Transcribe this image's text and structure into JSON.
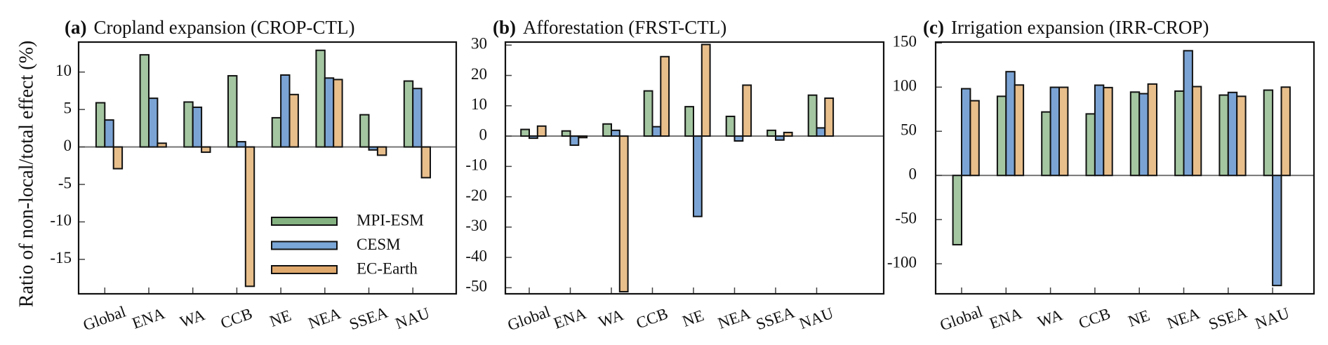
{
  "figure": {
    "ylabel": "Ratio of non-local/total effect (%)",
    "series_colors": {
      "MPI-ESM": "#a4c6a1",
      "CESM": "#7ba4d5",
      "EC-Earth": "#e8be8b"
    },
    "legend_swatch_colors": {
      "MPI-ESM": "#84b381",
      "CESM": "#7aa6d8",
      "EC-Earth": "#dfa86c"
    }
  },
  "chart_data": [
    {
      "type": "bar",
      "panel_label": "(a)",
      "title": "Cropland expansion (CROP-CTL)",
      "xlabel": "",
      "ylabel": "Ratio of non-local/total effect (%)",
      "categories": [
        "Global",
        "ENA",
        "WA",
        "CCB",
        "NE",
        "NEA",
        "SSEA",
        "NAU"
      ],
      "ylim": [
        -19.6,
        14
      ],
      "yticks": [
        10,
        5,
        0,
        -5,
        -10,
        -15
      ],
      "ytick_labels": [
        "10",
        "5",
        "0",
        "-5",
        "-10",
        "-15"
      ],
      "legend": {
        "placement": "lower-center",
        "entries": [
          "MPI-ESM",
          "CESM",
          "EC-Earth"
        ]
      },
      "series": [
        {
          "name": "MPI-ESM",
          "values": [
            5.9,
            12.3,
            6.0,
            9.5,
            3.9,
            12.9,
            4.3,
            8.8
          ]
        },
        {
          "name": "CESM",
          "values": [
            3.6,
            6.5,
            5.3,
            0.7,
            9.6,
            9.2,
            -0.4,
            7.8
          ]
        },
        {
          "name": "EC-Earth",
          "values": [
            -2.9,
            0.5,
            -0.7,
            -18.6,
            7.0,
            9.0,
            -1.1,
            -4.1
          ]
        }
      ]
    },
    {
      "type": "bar",
      "panel_label": "(b)",
      "title": "Afforestation (FRST-CTL)",
      "xlabel": "",
      "ylabel": "",
      "categories": [
        "Global",
        "ENA",
        "WA",
        "CCB",
        "NE",
        "NEA",
        "SSEA",
        "NAU"
      ],
      "ylim": [
        -52,
        31
      ],
      "yticks": [
        30,
        20,
        10,
        0,
        -10,
        -20,
        -30,
        -40,
        -50
      ],
      "ytick_labels": [
        "30",
        "20",
        "10",
        "0",
        "-10",
        "-20",
        "-30",
        "-40",
        "-50"
      ],
      "series": [
        {
          "name": "MPI-ESM",
          "values": [
            2.2,
            1.7,
            4.0,
            14.9,
            9.7,
            6.5,
            1.9,
            13.5
          ]
        },
        {
          "name": "CESM",
          "values": [
            -0.7,
            -3.0,
            1.9,
            3.1,
            -26.5,
            -1.6,
            -1.3,
            2.7
          ]
        },
        {
          "name": "EC-Earth",
          "values": [
            3.3,
            -0.5,
            -51.3,
            26.2,
            30.2,
            16.8,
            1.2,
            12.5
          ]
        }
      ]
    },
    {
      "type": "bar",
      "panel_label": "(c)",
      "title": "Irrigation expansion (IRR-CROP)",
      "xlabel": "",
      "ylabel": "",
      "categories": [
        "Global",
        "ENA",
        "WA",
        "CCB",
        "NE",
        "NEA",
        "SSEA",
        "NAU"
      ],
      "ylim": [
        -134,
        151
      ],
      "yticks": [
        150,
        100,
        50,
        0,
        -50,
        -100
      ],
      "ytick_labels": [
        "150",
        "100",
        "50",
        "0",
        "-50",
        "-100"
      ],
      "series": [
        {
          "name": "MPI-ESM",
          "values": [
            -78.4,
            89.6,
            71.9,
            69.7,
            94.4,
            95.5,
            91.0,
            96.6
          ]
        },
        {
          "name": "CESM",
          "values": [
            98.2,
            117.5,
            99.8,
            102.2,
            92.6,
            141.2,
            94.0,
            -124.6
          ]
        },
        {
          "name": "EC-Earth",
          "values": [
            84.6,
            102.4,
            99.8,
            99.5,
            103.5,
            100.6,
            89.6,
            100.0
          ]
        }
      ]
    }
  ]
}
